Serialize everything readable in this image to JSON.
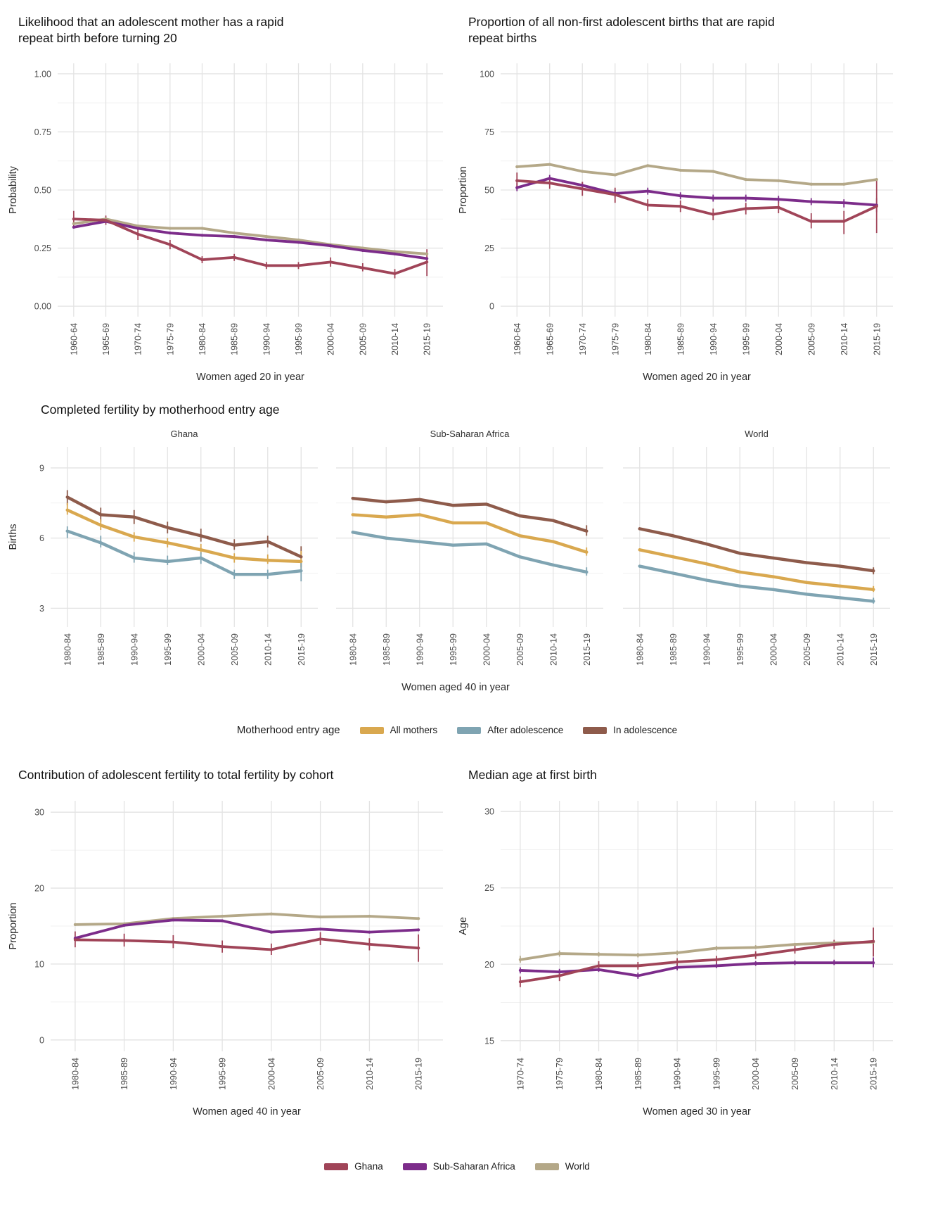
{
  "colors": {
    "ghana": "#a04458",
    "ssa": "#7c2c8a",
    "world": "#b4a888",
    "all_mothers": "#d9a84f",
    "after_adolescence": "#7fa4b2",
    "in_adolescence": "#8e5b4b"
  },
  "sections": {
    "fertility": {
      "title": "Completed fertility by motherhood entry age",
      "xlabel": "Women aged 40 in year"
    }
  },
  "legends": {
    "motherhood": {
      "title": "Motherhood entry age",
      "items": [
        {
          "label": "All mothers",
          "color": "all_mothers"
        },
        {
          "label": "After adolescence",
          "color": "after_adolescence"
        },
        {
          "label": "In adolescence",
          "color": "in_adolescence"
        }
      ]
    },
    "region": {
      "items": [
        {
          "label": "Ghana",
          "color": "ghana"
        },
        {
          "label": "Sub-Saharan Africa",
          "color": "ssa"
        },
        {
          "label": "World",
          "color": "world"
        }
      ]
    }
  },
  "chart_data": [
    {
      "id": "rrb_probability",
      "type": "line",
      "title": "Likelihood that an adolescent mother has a rapid repeat birth before turning 20",
      "xlabel": "Women aged 20 in year",
      "ylabel": "Probability",
      "categories": [
        "1960-64",
        "1965-69",
        "1970-74",
        "1975-79",
        "1980-84",
        "1985-89",
        "1990-94",
        "1995-99",
        "2000-04",
        "2005-09",
        "2010-14",
        "2015-19"
      ],
      "ylim": [
        -0.045,
        1.045
      ],
      "yticks": [
        0,
        0.25,
        0.5,
        0.75,
        1
      ],
      "ytick_labels": [
        "0.00",
        "0.25",
        "0.50",
        "0.75",
        "1.00"
      ],
      "series": [
        {
          "name": "World",
          "color": "world",
          "values": [
            0.355,
            0.375,
            0.345,
            0.335,
            0.335,
            0.315,
            0.3,
            0.285,
            0.265,
            0.25,
            0.235,
            0.225
          ],
          "err": null
        },
        {
          "name": "Sub-Saharan Africa",
          "color": "ssa",
          "values": [
            0.34,
            0.365,
            0.335,
            0.315,
            0.305,
            0.3,
            0.285,
            0.275,
            0.26,
            0.24,
            0.225,
            0.205
          ],
          "err": null
        },
        {
          "name": "Ghana",
          "color": "ghana",
          "values": [
            0.375,
            0.37,
            0.31,
            0.265,
            0.2,
            0.21,
            0.175,
            0.175,
            0.19,
            0.165,
            0.14,
            0.19
          ],
          "err": [
            [
              0.345,
              0.41
            ],
            [
              0.35,
              0.39
            ],
            [
              0.285,
              0.335
            ],
            [
              0.245,
              0.285
            ],
            [
              0.185,
              0.215
            ],
            [
              0.195,
              0.225
            ],
            [
              0.16,
              0.19
            ],
            [
              0.16,
              0.19
            ],
            [
              0.17,
              0.21
            ],
            [
              0.15,
              0.185
            ],
            [
              0.12,
              0.16
            ],
            [
              0.13,
              0.245
            ]
          ]
        }
      ]
    },
    {
      "id": "rrb_proportion",
      "type": "line",
      "title": "Proportion of all non-first adolescent births that are rapid repeat births",
      "xlabel": "Women aged 20 in year",
      "ylabel": "Proportion",
      "categories": [
        "1960-64",
        "1965-69",
        "1970-74",
        "1975-79",
        "1980-84",
        "1985-89",
        "1990-94",
        "1995-99",
        "2000-04",
        "2005-09",
        "2010-14",
        "2015-19"
      ],
      "ylim": [
        -4.5,
        104.5
      ],
      "yticks": [
        0,
        25,
        50,
        75,
        100
      ],
      "ytick_labels": [
        "0",
        "25",
        "50",
        "75",
        "100"
      ],
      "series": [
        {
          "name": "World",
          "color": "world",
          "values": [
            60,
            61,
            58,
            56.5,
            60.5,
            58.5,
            58,
            54.5,
            54,
            52.5,
            52.5,
            54.5
          ],
          "err": null
        },
        {
          "name": "Sub-Saharan Africa",
          "color": "ssa",
          "values": [
            51,
            55,
            52,
            48.5,
            49.5,
            47.5,
            46.5,
            46.5,
            46,
            45,
            44.5,
            43.5
          ],
          "err": [
            [
              49.5,
              53
            ],
            [
              53.5,
              56.5
            ],
            [
              50.5,
              53.5
            ],
            [
              47,
              50
            ],
            [
              48,
              51
            ],
            [
              46,
              49
            ],
            [
              45,
              48
            ],
            [
              45,
              48
            ],
            [
              44.5,
              47.5
            ],
            [
              43.5,
              46.5
            ],
            [
              42.5,
              46
            ],
            [
              40.5,
              46.5
            ]
          ]
        },
        {
          "name": "Ghana",
          "color": "ghana",
          "values": [
            54,
            53,
            50.5,
            48,
            43.5,
            43,
            39.5,
            42,
            42.5,
            36.5,
            36.5,
            43
          ],
          "err": [
            [
              51,
              57.5
            ],
            [
              50.5,
              55.5
            ],
            [
              47.5,
              53.5
            ],
            [
              44.5,
              51
            ],
            [
              41,
              46
            ],
            [
              40.5,
              45.5
            ],
            [
              37,
              42
            ],
            [
              39.5,
              44.5
            ],
            [
              40,
              45
            ],
            [
              33.5,
              40
            ],
            [
              31,
              41
            ],
            [
              31.5,
              55
            ]
          ]
        }
      ]
    },
    {
      "id": "fert_ghana",
      "type": "line",
      "strip": "Ghana",
      "ylabel": "Births",
      "categories": [
        "1980-84",
        "1985-89",
        "1990-94",
        "1995-99",
        "2000-04",
        "2005-09",
        "2010-14",
        "2015-19"
      ],
      "ylim": [
        2.2,
        9.9
      ],
      "yticks": [
        3,
        6,
        9
      ],
      "ytick_labels": [
        "3",
        "6",
        "9"
      ],
      "series": [
        {
          "name": "In adolescence",
          "color": "in_adolescence",
          "values": [
            7.75,
            7.0,
            6.9,
            6.45,
            6.1,
            5.7,
            5.85,
            5.2
          ],
          "err": [
            [
              7.4,
              8.05
            ],
            [
              6.7,
              7.3
            ],
            [
              6.6,
              7.2
            ],
            [
              6.2,
              6.7
            ],
            [
              5.85,
              6.4
            ],
            [
              5.5,
              5.95
            ],
            [
              5.6,
              6.1
            ],
            [
              4.75,
              5.65
            ]
          ]
        },
        {
          "name": "All mothers",
          "color": "all_mothers",
          "values": [
            7.2,
            6.55,
            6.05,
            5.8,
            5.5,
            5.15,
            5.05,
            5.0
          ],
          "err": [
            [
              7.0,
              7.5
            ],
            [
              6.35,
              6.8
            ],
            [
              5.85,
              6.25
            ],
            [
              5.6,
              6.0
            ],
            [
              5.3,
              5.75
            ],
            [
              4.95,
              5.35
            ],
            [
              4.9,
              5.3
            ],
            [
              4.6,
              5.45
            ]
          ]
        },
        {
          "name": "After adolescence",
          "color": "after_adolescence",
          "values": [
            6.3,
            5.8,
            5.15,
            5.0,
            5.15,
            4.45,
            4.45,
            4.6
          ],
          "err": [
            [
              6.0,
              6.5
            ],
            [
              5.6,
              6.1
            ],
            [
              4.95,
              5.4
            ],
            [
              4.85,
              5.25
            ],
            [
              4.9,
              5.4
            ],
            [
              4.25,
              4.65
            ],
            [
              4.25,
              4.65
            ],
            [
              4.15,
              5.05
            ]
          ]
        }
      ]
    },
    {
      "id": "fert_ssa",
      "type": "line",
      "strip": "Sub-Saharan Africa",
      "categories": [
        "1980-84",
        "1985-89",
        "1990-94",
        "1995-99",
        "2000-04",
        "2005-09",
        "2010-14",
        "2015-19"
      ],
      "ylim": [
        2.2,
        9.9
      ],
      "yticks": [
        3,
        6,
        9
      ],
      "ytick_labels": [
        "3",
        "6",
        "9"
      ],
      "series": [
        {
          "name": "In adolescence",
          "color": "in_adolescence",
          "values": [
            7.7,
            7.55,
            7.65,
            7.4,
            7.45,
            6.95,
            6.75,
            6.3
          ],
          "err": [
            null,
            null,
            null,
            null,
            null,
            null,
            null,
            [
              6.1,
              6.55
            ]
          ]
        },
        {
          "name": "All mothers",
          "color": "all_mothers",
          "values": [
            7.0,
            6.9,
            7.0,
            6.65,
            6.65,
            6.1,
            5.85,
            5.4
          ],
          "err": [
            null,
            null,
            null,
            null,
            null,
            null,
            null,
            [
              5.25,
              5.6
            ]
          ]
        },
        {
          "name": "After adolescence",
          "color": "after_adolescence",
          "values": [
            6.25,
            6.0,
            5.85,
            5.7,
            5.75,
            5.2,
            4.85,
            4.55
          ],
          "err": [
            null,
            null,
            null,
            null,
            null,
            null,
            null,
            [
              4.4,
              4.75
            ]
          ]
        }
      ]
    },
    {
      "id": "fert_world",
      "type": "line",
      "strip": "World",
      "categories": [
        "1980-84",
        "1985-89",
        "1990-94",
        "1995-99",
        "2000-04",
        "2005-09",
        "2010-14",
        "2015-19"
      ],
      "ylim": [
        2.2,
        9.9
      ],
      "yticks": [
        3,
        6,
        9
      ],
      "ytick_labels": [
        "3",
        "6",
        "9"
      ],
      "series": [
        {
          "name": "In adolescence",
          "color": "in_adolescence",
          "values": [
            6.4,
            6.1,
            5.75,
            5.35,
            5.15,
            4.95,
            4.8,
            4.6
          ],
          "err": [
            null,
            null,
            null,
            null,
            null,
            null,
            null,
            [
              4.45,
              4.75
            ]
          ]
        },
        {
          "name": "All mothers",
          "color": "all_mothers",
          "values": [
            5.5,
            5.2,
            4.9,
            4.55,
            4.35,
            4.1,
            3.95,
            3.8
          ],
          "err": [
            null,
            null,
            null,
            null,
            null,
            null,
            null,
            [
              3.7,
              3.95
            ]
          ]
        },
        {
          "name": "After adolescence",
          "color": "after_adolescence",
          "values": [
            4.8,
            4.5,
            4.2,
            3.95,
            3.8,
            3.6,
            3.45,
            3.3
          ],
          "err": [
            null,
            null,
            null,
            null,
            null,
            null,
            null,
            [
              3.2,
              3.45
            ]
          ]
        }
      ]
    },
    {
      "id": "adolescent_contribution",
      "type": "line",
      "title": "Contribution of adolescent fertility to total fertility by cohort",
      "xlabel": "Women aged 40 in year",
      "ylabel": "Proportion",
      "categories": [
        "1980-84",
        "1985-89",
        "1990-94",
        "1995-99",
        "2000-04",
        "2005-09",
        "2010-14",
        "2015-19"
      ],
      "ylim": [
        -1.5,
        31.5
      ],
      "yticks": [
        0,
        10,
        20,
        30
      ],
      "ytick_labels": [
        "0",
        "10",
        "20",
        "30"
      ],
      "series": [
        {
          "name": "World",
          "color": "world",
          "values": [
            15.2,
            15.3,
            16.0,
            16.3,
            16.6,
            16.2,
            16.3,
            16.0
          ],
          "err": null
        },
        {
          "name": "Sub-Saharan Africa",
          "color": "ssa",
          "values": [
            13.4,
            15.1,
            15.8,
            15.7,
            14.2,
            14.6,
            14.2,
            14.5
          ],
          "err": null
        },
        {
          "name": "Ghana",
          "color": "ghana",
          "values": [
            13.2,
            13.1,
            12.9,
            12.3,
            11.9,
            13.3,
            12.6,
            12.1
          ],
          "err": [
            [
              12.2,
              14.3
            ],
            [
              12.3,
              14.0
            ],
            [
              12.1,
              13.8
            ],
            [
              11.5,
              13.1
            ],
            [
              11.2,
              12.7
            ],
            [
              12.5,
              14.2
            ],
            [
              11.8,
              13.4
            ],
            [
              10.3,
              13.9
            ]
          ]
        }
      ]
    },
    {
      "id": "median_age",
      "type": "line",
      "title": "Median age at first birth",
      "xlabel": "Women aged 30 in year",
      "ylabel": "Age",
      "categories": [
        "1970-74",
        "1975-79",
        "1980-84",
        "1985-89",
        "1990-94",
        "1995-99",
        "2000-04",
        "2005-09",
        "2010-14",
        "2015-19"
      ],
      "ylim": [
        14.3,
        30.7
      ],
      "yticks": [
        15,
        20,
        25,
        30
      ],
      "ytick_labels": [
        "15",
        "20",
        "25",
        "30"
      ],
      "series": [
        {
          "name": "World",
          "color": "world",
          "values": [
            20.3,
            20.7,
            20.65,
            20.6,
            20.75,
            21.05,
            21.1,
            21.3,
            21.4,
            21.45
          ],
          "err": [
            [
              20.1,
              20.55
            ],
            [
              20.5,
              20.9
            ],
            [
              20.5,
              20.8
            ],
            [
              20.45,
              20.75
            ],
            [
              20.6,
              20.9
            ],
            [
              20.9,
              21.2
            ],
            [
              21.0,
              21.25
            ],
            [
              21.15,
              21.4
            ],
            [
              21.3,
              21.55
            ],
            [
              21.25,
              21.6
            ]
          ]
        },
        {
          "name": "Sub-Saharan Africa",
          "color": "ssa",
          "values": [
            19.6,
            19.5,
            19.65,
            19.25,
            19.8,
            19.9,
            20.05,
            20.1,
            20.1,
            20.1
          ],
          "err": [
            [
              19.4,
              19.8
            ],
            [
              19.3,
              19.7
            ],
            [
              19.5,
              19.8
            ],
            [
              19.05,
              19.45
            ],
            [
              19.6,
              20.0
            ],
            [
              19.75,
              20.1
            ],
            [
              19.9,
              20.2
            ],
            [
              19.95,
              20.25
            ],
            [
              19.95,
              20.3
            ],
            [
              19.8,
              20.45
            ]
          ]
        },
        {
          "name": "Ghana",
          "color": "ghana",
          "values": [
            18.85,
            19.25,
            19.9,
            19.9,
            20.15,
            20.3,
            20.6,
            20.95,
            21.3,
            21.5
          ],
          "err": [
            [
              18.5,
              19.2
            ],
            [
              18.9,
              19.6
            ],
            [
              19.6,
              20.2
            ],
            [
              19.65,
              20.15
            ],
            [
              19.9,
              20.4
            ],
            [
              20.05,
              20.55
            ],
            [
              20.35,
              20.85
            ],
            [
              20.7,
              21.2
            ],
            [
              21.0,
              21.6
            ],
            [
              20.5,
              22.4
            ]
          ]
        }
      ]
    }
  ]
}
